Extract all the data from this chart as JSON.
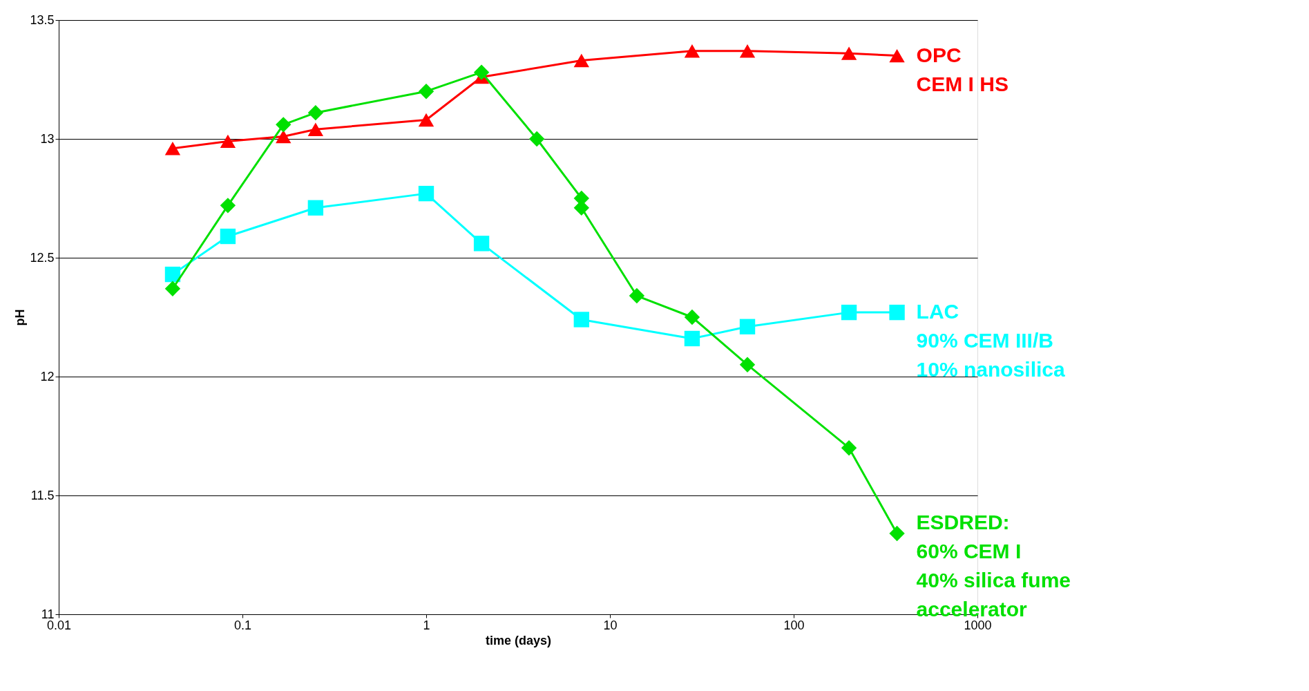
{
  "chart_data": {
    "type": "line",
    "xlabel": "time (days)",
    "ylabel": "pH",
    "log": "x",
    "xlim": [
      0.01,
      1000
    ],
    "xticks": [
      0.01,
      0.1,
      1,
      10,
      100,
      1000
    ],
    "ylim": [
      11,
      13.5
    ],
    "yticks": [
      11,
      11.5,
      12,
      12.5,
      13,
      13.5
    ],
    "grid": "y",
    "line_style": "solid",
    "series": [
      {
        "name": "OPC\nCEM I HS",
        "color": "#ff0000",
        "marker": "triangle",
        "x": [
          0.0417,
          0.0833,
          0.167,
          0.25,
          1,
          2,
          7,
          28,
          56,
          200,
          365
        ],
        "values": [
          12.96,
          12.99,
          13.01,
          13.04,
          13.08,
          13.26,
          13.33,
          13.37,
          13.37,
          13.36,
          13.35
        ]
      },
      {
        "name": "LAC\n90% CEM III/B\n10% nanosilica",
        "color": "#00ffff",
        "marker": "square",
        "x": [
          0.0417,
          0.0833,
          0.25,
          1,
          2,
          7,
          28,
          56,
          200,
          365
        ],
        "values": [
          12.43,
          12.59,
          12.71,
          12.77,
          12.56,
          12.24,
          12.16,
          12.21,
          12.27,
          12.27
        ]
      },
      {
        "name": "ESDRED:\n60% CEM I\n40% silica fume\naccelerator",
        "color": "#00e000",
        "marker": "diamond",
        "x": [
          0.0417,
          0.0833,
          0.167,
          0.25,
          1,
          2,
          4,
          7,
          7,
          14,
          28,
          56,
          200,
          365
        ],
        "values": [
          12.37,
          12.72,
          13.06,
          13.11,
          13.2,
          13.28,
          13.0,
          12.75,
          12.71,
          12.34,
          12.25,
          12.05,
          11.7,
          11.34
        ]
      }
    ]
  }
}
